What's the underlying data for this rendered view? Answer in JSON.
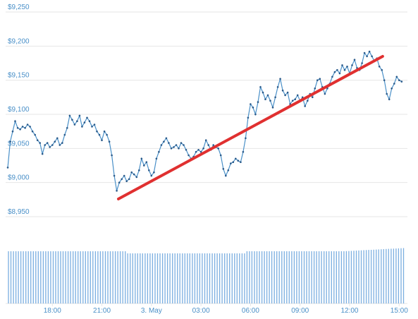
{
  "chart_data": {
    "type": "line",
    "title": "",
    "xlabel": "",
    "ylabel": "",
    "ylim": [
      8950,
      9250
    ],
    "y_ticks": [
      "$8,950",
      "$9,000",
      "$9,050",
      "$9,100",
      "$9,150",
      "$9,200",
      "$9,250"
    ],
    "y_tick_values": [
      8950,
      9000,
      9050,
      9100,
      9150,
      9200,
      9250
    ],
    "x_ticks": [
      "18:00",
      "21:00",
      "3. May",
      "03:00",
      "06:00",
      "09:00",
      "12:00",
      "15:00"
    ],
    "x_tick_hours": [
      18,
      21,
      24,
      27,
      30,
      33,
      36,
      39
    ],
    "x_range_hours": [
      15.3,
      39.5
    ],
    "grid": true,
    "legend": "none",
    "colors": {
      "line": "#4a90c8",
      "marker": "#2a5a8a",
      "trend": "#e03030",
      "grid": "#e6e6e6",
      "volume": "#7aaee0",
      "label": "#4a90c8"
    },
    "series": [
      {
        "values": [
          [
            15.3,
            9022
          ],
          [
            15.45,
            9060
          ],
          [
            15.6,
            9075
          ],
          [
            15.75,
            9090
          ],
          [
            15.9,
            9080
          ],
          [
            16.05,
            9078
          ],
          [
            16.2,
            9082
          ],
          [
            16.35,
            9080
          ],
          [
            16.5,
            9085
          ],
          [
            16.65,
            9082
          ],
          [
            16.8,
            9075
          ],
          [
            16.95,
            9070
          ],
          [
            17.1,
            9062
          ],
          [
            17.25,
            9058
          ],
          [
            17.4,
            9042
          ],
          [
            17.55,
            9055
          ],
          [
            17.7,
            9058
          ],
          [
            17.85,
            9052
          ],
          [
            18.0,
            9055
          ],
          [
            18.15,
            9060
          ],
          [
            18.3,
            9065
          ],
          [
            18.45,
            9055
          ],
          [
            18.6,
            9058
          ],
          [
            18.75,
            9070
          ],
          [
            18.9,
            9080
          ],
          [
            19.05,
            9098
          ],
          [
            19.2,
            9092
          ],
          [
            19.35,
            9085
          ],
          [
            19.5,
            9090
          ],
          [
            19.65,
            9098
          ],
          [
            19.8,
            9082
          ],
          [
            19.95,
            9088
          ],
          [
            20.1,
            9095
          ],
          [
            20.25,
            9090
          ],
          [
            20.4,
            9082
          ],
          [
            20.55,
            9085
          ],
          [
            20.7,
            9075
          ],
          [
            20.85,
            9070
          ],
          [
            21.0,
            9062
          ],
          [
            21.15,
            9075
          ],
          [
            21.3,
            9070
          ],
          [
            21.45,
            9060
          ],
          [
            21.6,
            9040
          ],
          [
            21.75,
            9010
          ],
          [
            21.9,
            8988
          ],
          [
            22.05,
            9000
          ],
          [
            22.2,
            9005
          ],
          [
            22.35,
            9010
          ],
          [
            22.5,
            9002
          ],
          [
            22.65,
            9005
          ],
          [
            22.8,
            9015
          ],
          [
            22.95,
            9012
          ],
          [
            23.1,
            9008
          ],
          [
            23.25,
            9018
          ],
          [
            23.4,
            9035
          ],
          [
            23.55,
            9025
          ],
          [
            23.7,
            9030
          ],
          [
            23.85,
            9018
          ],
          [
            24.0,
            9010
          ],
          [
            24.15,
            9015
          ],
          [
            24.3,
            9035
          ],
          [
            24.45,
            9045
          ],
          [
            24.6,
            9055
          ],
          [
            24.75,
            9060
          ],
          [
            24.9,
            9065
          ],
          [
            25.05,
            9058
          ],
          [
            25.2,
            9050
          ],
          [
            25.35,
            9052
          ],
          [
            25.5,
            9055
          ],
          [
            25.65,
            9050
          ],
          [
            25.8,
            9058
          ],
          [
            25.95,
            9055
          ],
          [
            26.1,
            9048
          ],
          [
            26.25,
            9040
          ],
          [
            26.4,
            9035
          ],
          [
            26.55,
            9038
          ],
          [
            26.7,
            9045
          ],
          [
            26.85,
            9048
          ],
          [
            27.0,
            9045
          ],
          [
            27.15,
            9050
          ],
          [
            27.3,
            9062
          ],
          [
            27.45,
            9055
          ],
          [
            27.6,
            9048
          ],
          [
            27.75,
            9055
          ],
          [
            27.9,
            9052
          ],
          [
            28.05,
            9050
          ],
          [
            28.2,
            9040
          ],
          [
            28.35,
            9020
          ],
          [
            28.5,
            9010
          ],
          [
            28.65,
            9018
          ],
          [
            28.8,
            9028
          ],
          [
            28.95,
            9030
          ],
          [
            29.1,
            9035
          ],
          [
            29.25,
            9032
          ],
          [
            29.4,
            9030
          ],
          [
            29.55,
            9045
          ],
          [
            29.7,
            9065
          ],
          [
            29.85,
            9095
          ],
          [
            30.0,
            9115
          ],
          [
            30.15,
            9110
          ],
          [
            30.3,
            9100
          ],
          [
            30.45,
            9118
          ],
          [
            30.6,
            9140
          ],
          [
            30.75,
            9132
          ],
          [
            30.9,
            9122
          ],
          [
            31.05,
            9128
          ],
          [
            31.2,
            9120
          ],
          [
            31.35,
            9110
          ],
          [
            31.5,
            9125
          ],
          [
            31.65,
            9140
          ],
          [
            31.8,
            9152
          ],
          [
            31.95,
            9135
          ],
          [
            32.1,
            9128
          ],
          [
            32.25,
            9132
          ],
          [
            32.4,
            9115
          ],
          [
            32.55,
            9120
          ],
          [
            32.7,
            9122
          ],
          [
            32.85,
            9128
          ],
          [
            33.0,
            9120
          ],
          [
            33.15,
            9125
          ],
          [
            33.3,
            9112
          ],
          [
            33.45,
            9120
          ],
          [
            33.6,
            9130
          ],
          [
            33.75,
            9125
          ],
          [
            33.9,
            9138
          ],
          [
            34.05,
            9150
          ],
          [
            34.2,
            9152
          ],
          [
            34.35,
            9140
          ],
          [
            34.5,
            9130
          ],
          [
            34.65,
            9138
          ],
          [
            34.8,
            9145
          ],
          [
            34.95,
            9155
          ],
          [
            35.1,
            9162
          ],
          [
            35.25,
            9165
          ],
          [
            35.4,
            9160
          ],
          [
            35.55,
            9172
          ],
          [
            35.7,
            9165
          ],
          [
            35.85,
            9170
          ],
          [
            36.0,
            9160
          ],
          [
            36.15,
            9172
          ],
          [
            36.3,
            9180
          ],
          [
            36.45,
            9168
          ],
          [
            36.6,
            9165
          ],
          [
            36.75,
            9175
          ],
          [
            36.9,
            9190
          ],
          [
            37.05,
            9185
          ],
          [
            37.2,
            9192
          ],
          [
            37.35,
            9185
          ],
          [
            37.5,
            9178
          ],
          [
            37.65,
            9182
          ],
          [
            37.8,
            9170
          ],
          [
            37.95,
            9165
          ],
          [
            38.1,
            9150
          ],
          [
            38.25,
            9130
          ],
          [
            38.4,
            9122
          ],
          [
            38.55,
            9138
          ],
          [
            38.7,
            9145
          ],
          [
            38.85,
            9155
          ],
          [
            39.0,
            9150
          ],
          [
            39.15,
            9148
          ]
        ]
      }
    ],
    "trendline": [
      [
        22.0,
        8976
      ],
      [
        38.0,
        9185
      ]
    ],
    "volume_bar_count": 160
  }
}
